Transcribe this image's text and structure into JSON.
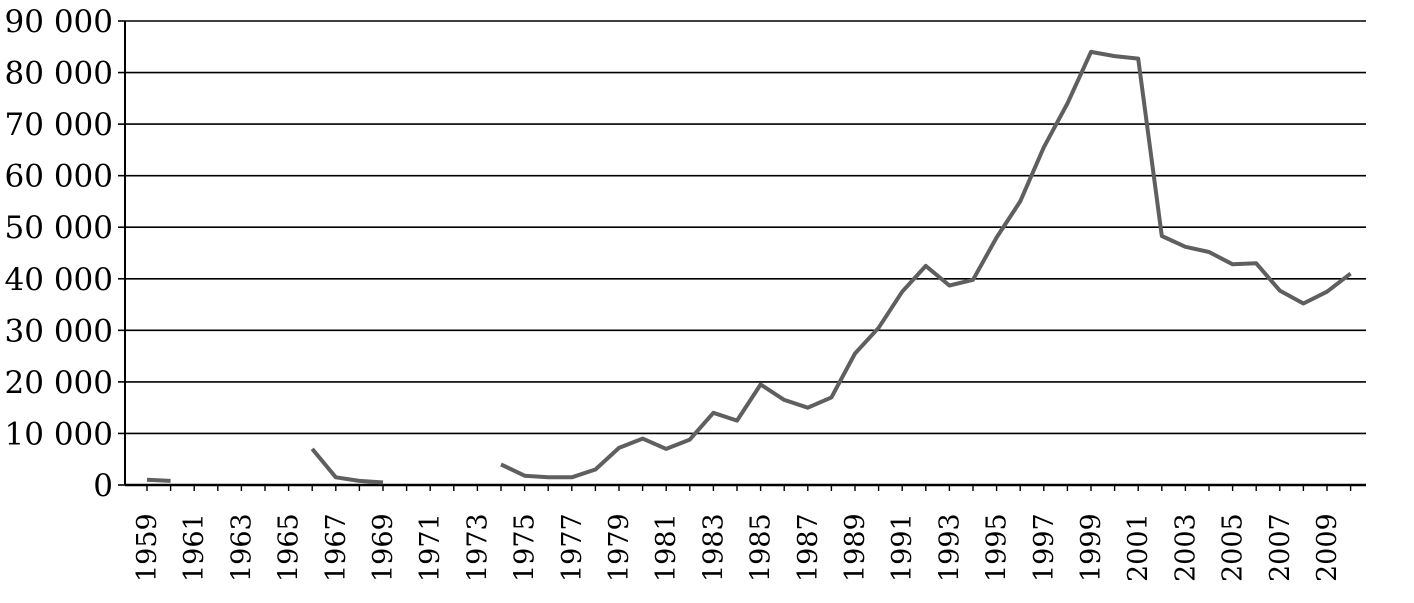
{
  "chart_data": {
    "type": "line",
    "title": "",
    "xlabel": "",
    "ylabel": "",
    "ylim": [
      0,
      90000
    ],
    "xlim": [
      1959,
      2010
    ],
    "grid": true,
    "legend": "none",
    "line_color": "#5f5f5f",
    "y_ticks": [
      {
        "value": 0,
        "label": "0"
      },
      {
        "value": 10000,
        "label": "10 000"
      },
      {
        "value": 20000,
        "label": "20 000"
      },
      {
        "value": 30000,
        "label": "30 000"
      },
      {
        "value": 40000,
        "label": "40 000"
      },
      {
        "value": 50000,
        "label": "50 000"
      },
      {
        "value": 60000,
        "label": "60 000"
      },
      {
        "value": 70000,
        "label": "70 000"
      },
      {
        "value": 80000,
        "label": "80 000"
      },
      {
        "value": 90000,
        "label": "90 000"
      }
    ],
    "x_ticks": [
      "1959",
      "1961",
      "1963",
      "1965",
      "1967",
      "1969",
      "1971",
      "1973",
      "1975",
      "1977",
      "1979",
      "1981",
      "1983",
      "1985",
      "1987",
      "1989",
      "1991",
      "1993",
      "1995",
      "1997",
      "1999",
      "2001",
      "2003",
      "2005",
      "2007",
      "2009"
    ],
    "x": [
      1959,
      1960,
      1961,
      1962,
      1963,
      1964,
      1965,
      1966,
      1967,
      1968,
      1969,
      1970,
      1971,
      1972,
      1973,
      1974,
      1975,
      1976,
      1977,
      1978,
      1979,
      1980,
      1981,
      1982,
      1983,
      1984,
      1985,
      1986,
      1987,
      1988,
      1989,
      1990,
      1991,
      1992,
      1993,
      1994,
      1995,
      1996,
      1997,
      1998,
      1999,
      2000,
      2001,
      2002,
      2003,
      2004,
      2005,
      2006,
      2007,
      2008,
      2009,
      2010
    ],
    "series": [
      {
        "values": [
          1000,
          800,
          null,
          null,
          null,
          null,
          null,
          7000,
          1500,
          800,
          500,
          null,
          null,
          null,
          null,
          4000,
          1800,
          1500,
          1500,
          3000,
          7200,
          9000,
          7000,
          8800,
          14000,
          12500,
          19500,
          16500,
          15000,
          17000,
          25500,
          30500,
          37500,
          42500,
          38700,
          39800,
          48000,
          55000,
          65500,
          74000,
          84000,
          83200,
          82700,
          48300,
          46200,
          45200,
          42800,
          43000,
          37700,
          35200,
          37500,
          41000
        ]
      }
    ]
  }
}
